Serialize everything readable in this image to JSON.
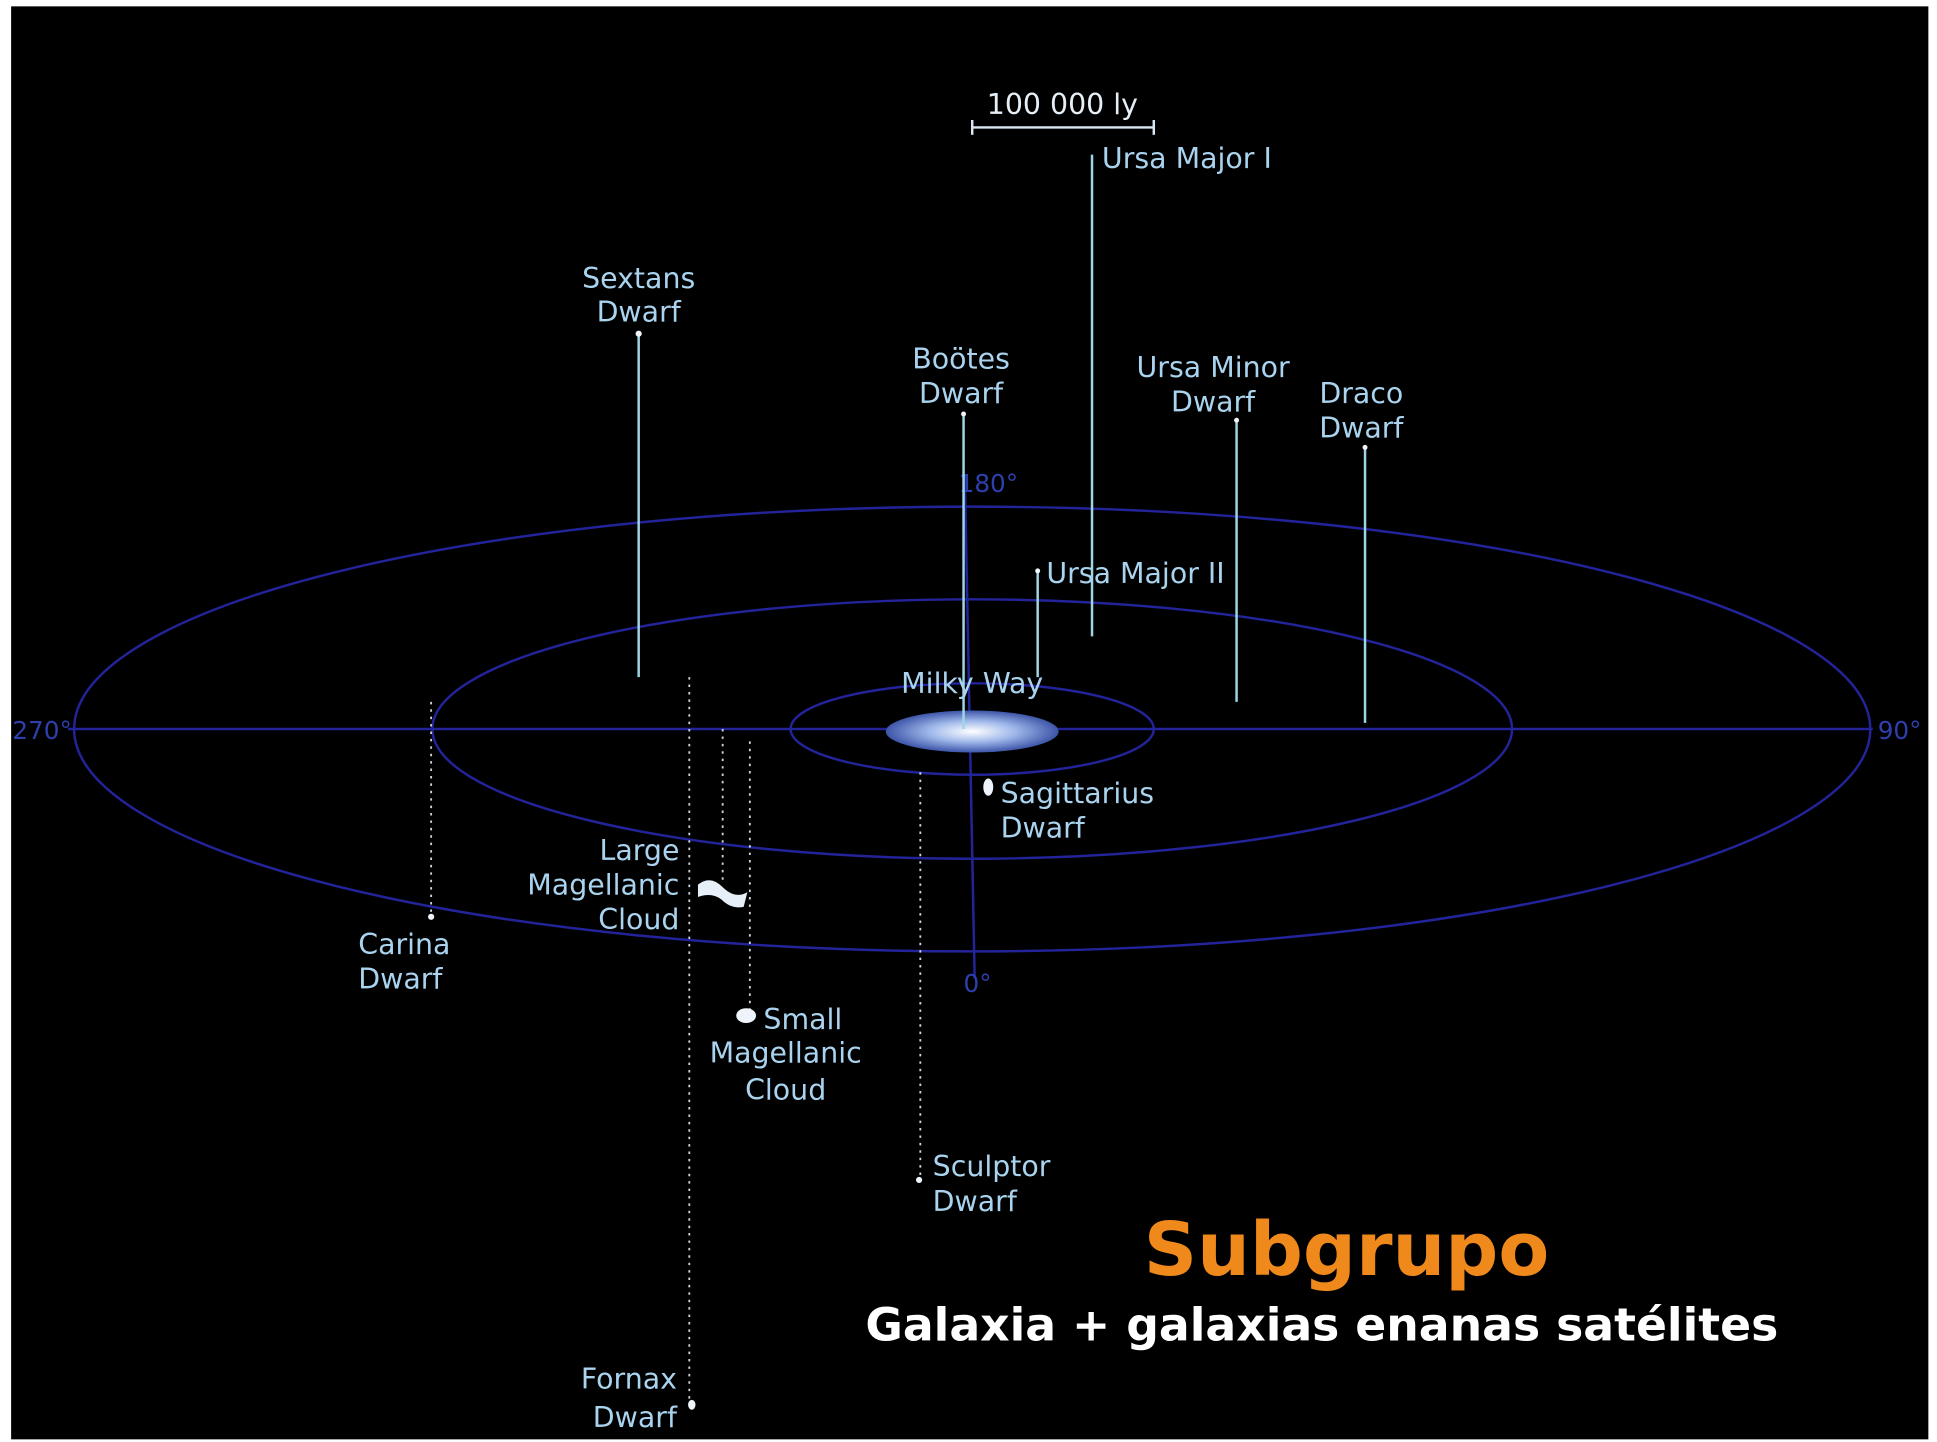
{
  "scale_bar": "100 000 ly",
  "angles": [
    "270°",
    "90°",
    "180°",
    "0°"
  ],
  "objects": [
    {
      "lines": [
        "Ursa Major I"
      ]
    },
    {
      "lines": [
        "Sextans",
        "Dwarf"
      ]
    },
    {
      "lines": [
        "Boötes",
        "Dwarf"
      ]
    },
    {
      "lines": [
        "Ursa Minor",
        "Dwarf"
      ]
    },
    {
      "lines": [
        "Draco",
        "Dwarf"
      ]
    },
    {
      "lines": [
        "Ursa Major II"
      ]
    },
    {
      "lines": [
        "Milky Way"
      ]
    },
    {
      "lines": [
        "Sagittarius",
        "Dwarf"
      ]
    },
    {
      "lines": [
        "Large",
        "Magellanic",
        "Cloud"
      ]
    },
    {
      "lines": [
        "Carina",
        "Dwarf"
      ]
    },
    {
      "lines": [
        "Small",
        "Magellanic",
        "Cloud"
      ]
    },
    {
      "lines": [
        "Sculptor",
        "Dwarf"
      ]
    },
    {
      "lines": [
        "Fornax",
        "Dwarf"
      ]
    }
  ],
  "title": "Subgrupo",
  "subtitle": "Galaxia + galaxias enanas satélites"
}
